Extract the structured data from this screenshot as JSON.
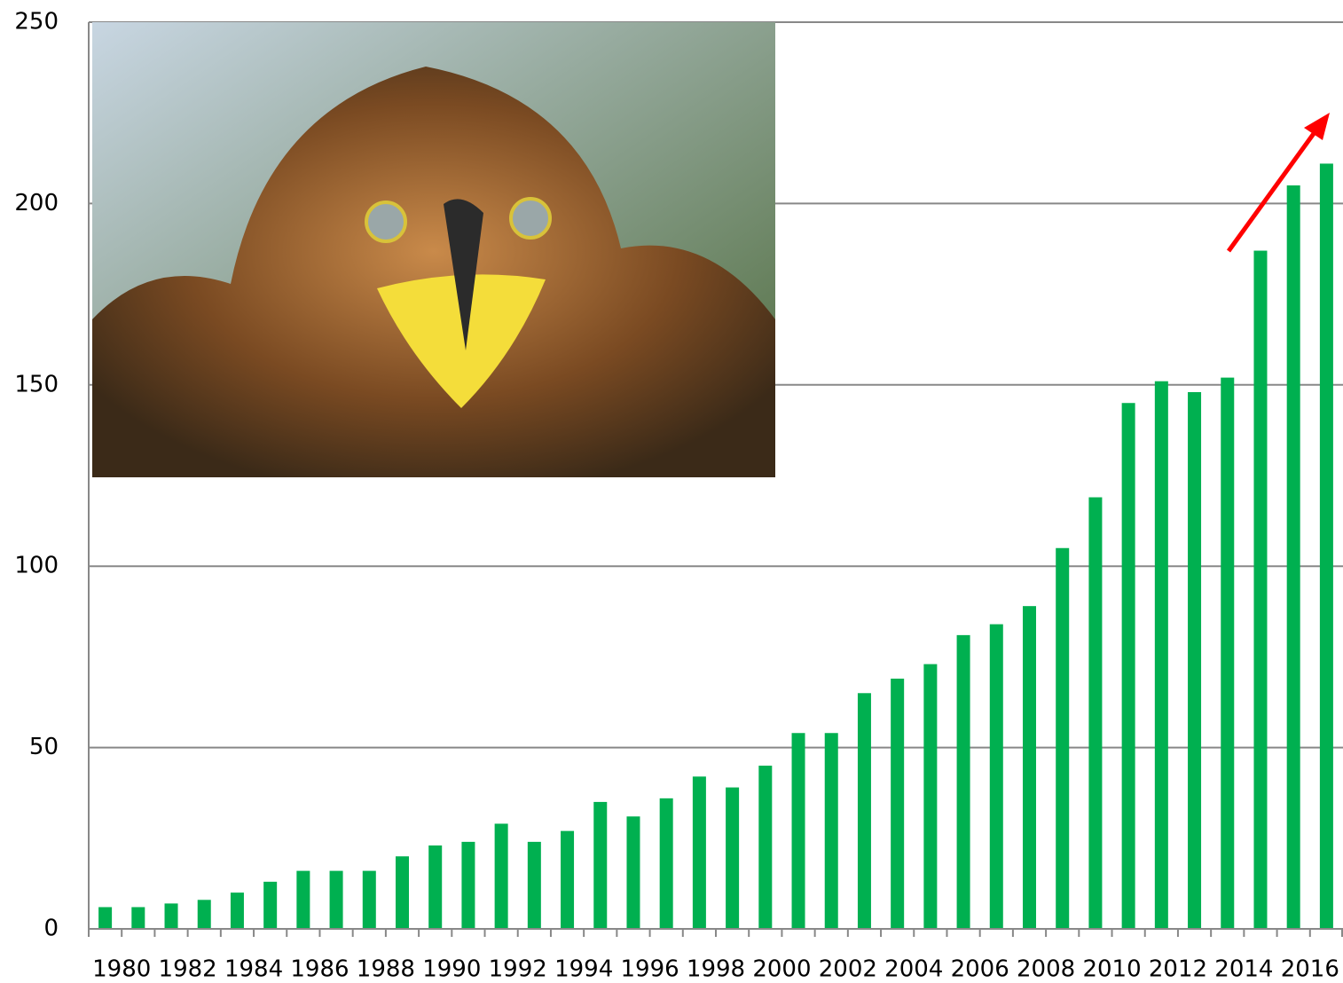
{
  "chart_data": {
    "type": "bar",
    "categories": [
      "1980",
      null,
      "1982",
      null,
      "1984",
      null,
      "1986",
      null,
      "1988",
      null,
      "1990",
      null,
      "1992",
      null,
      "1994",
      null,
      "1996",
      null,
      "1998",
      null,
      "2000",
      null,
      "2002",
      null,
      "2004",
      null,
      "2006",
      null,
      "2008",
      null,
      "2010",
      null,
      "2012",
      null,
      "2014",
      null,
      "2016",
      null
    ],
    "values": [
      6,
      6,
      7,
      8,
      10,
      13,
      16,
      16,
      16,
      20,
      23,
      24,
      29,
      24,
      27,
      35,
      31,
      36,
      42,
      39,
      45,
      54,
      54,
      65,
      69,
      73,
      81,
      84,
      89,
      105,
      119,
      145,
      151,
      148,
      152,
      187,
      205,
      211
    ],
    "color": "#00b050",
    "ylim": [
      0,
      250
    ],
    "yticks": [
      0,
      50,
      100,
      150,
      200,
      250
    ],
    "grid": true
  }
}
